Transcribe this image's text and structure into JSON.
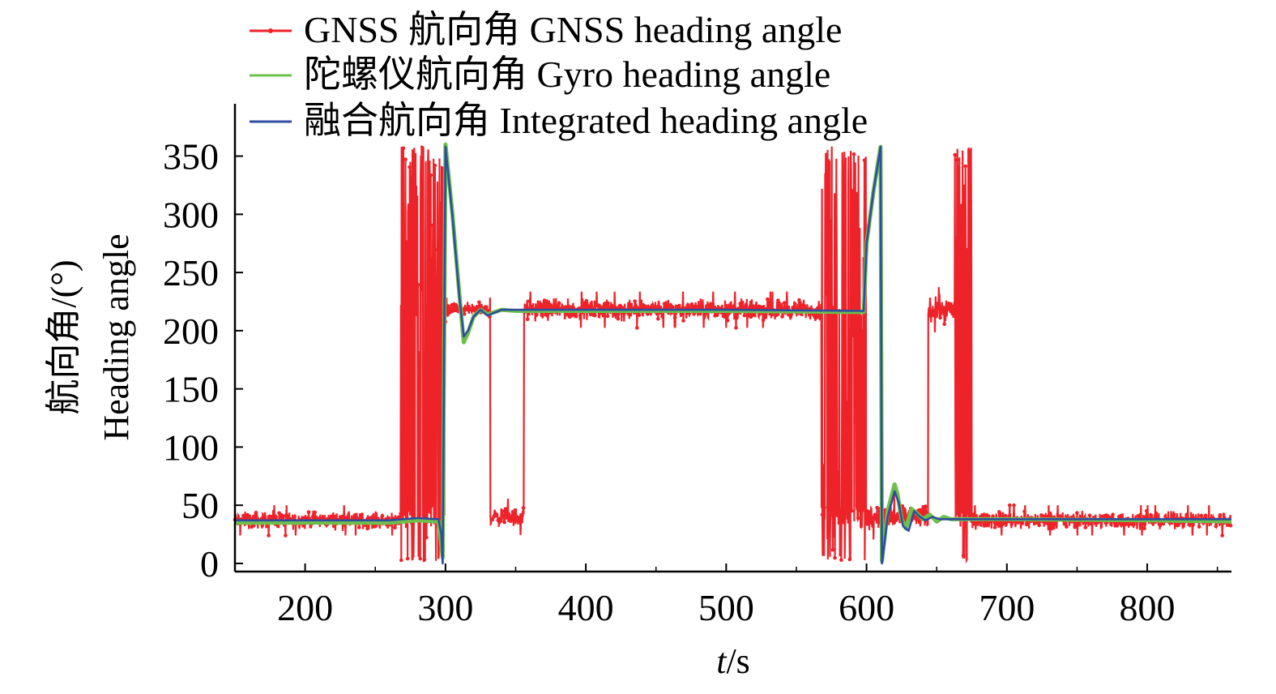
{
  "colors": {
    "gnss": "#ee2229",
    "gyro": "#6cc04a",
    "integrated": "#2e4da0",
    "axis": "#000000"
  },
  "chart_data": {
    "type": "line",
    "xlabel_italic": "t",
    "xlabel_unit": "/s",
    "ylabel_cn": "航向角/(°)",
    "ylabel_en": "Heading angle",
    "xlim": [
      150,
      860
    ],
    "ylim": [
      -7,
      395
    ],
    "x_ticks": [
      200,
      300,
      400,
      500,
      600,
      700,
      800
    ],
    "y_ticks": [
      0,
      50,
      100,
      150,
      200,
      250,
      300,
      350
    ],
    "legend_position": "top-left",
    "grid": false,
    "series": [
      {
        "name": "GNSS 航向角 GNSS heading angle",
        "color": "#ee2229",
        "marker": "dot",
        "noisy_segments": [
          {
            "x_start": 150,
            "x_end": 267,
            "center": 37,
            "spread": 10
          },
          {
            "x_start": 267,
            "x_end": 300,
            "center": 180,
            "spread": 180,
            "type": "switching"
          },
          {
            "x_start": 300,
            "x_end": 332,
            "center": 218,
            "spread": 8
          },
          {
            "x_start": 332,
            "x_end": 356,
            "center": 40,
            "spread": 12
          },
          {
            "x_start": 356,
            "x_end": 568,
            "center": 218,
            "spread": 12
          },
          {
            "x_start": 568,
            "x_end": 600,
            "center": 180,
            "spread": 180,
            "type": "switching"
          },
          {
            "x_start": 600,
            "x_end": 644,
            "center": 40,
            "spread": 15
          },
          {
            "x_start": 644,
            "x_end": 663,
            "center": 218,
            "spread": 15
          },
          {
            "x_start": 663,
            "x_end": 675,
            "center": 180,
            "spread": 180,
            "type": "switching"
          },
          {
            "x_start": 675,
            "x_end": 860,
            "center": 37,
            "spread": 10
          }
        ]
      },
      {
        "name": "陀螺仪航向角 Gyro heading angle",
        "color": "#6cc04a",
        "x": [
          150,
          200,
          260,
          280,
          295,
          298,
          300,
          305,
          310,
          313,
          316,
          320,
          325,
          330,
          340,
          350,
          400,
          500,
          598,
          600,
          605,
          610,
          611,
          615,
          620,
          622,
          625,
          628,
          632,
          636,
          640,
          645,
          650,
          655,
          660,
          670,
          700,
          800,
          860
        ],
        "y": [
          35,
          35,
          35,
          37,
          36,
          5,
          360,
          300,
          230,
          190,
          198,
          212,
          218,
          214,
          218,
          217,
          217,
          217,
          216,
          275,
          320,
          358,
          2,
          45,
          68,
          60,
          38,
          30,
          47,
          43,
          38,
          42,
          36,
          40,
          38,
          38,
          38,
          37,
          36
        ]
      },
      {
        "name": "融合航向角 Integrated heading angle",
        "color": "#2e4da0",
        "x": [
          150,
          200,
          260,
          280,
          295,
          297,
          298,
          300,
          305,
          310,
          313,
          316,
          320,
          325,
          330,
          340,
          350,
          400,
          500,
          598,
          600,
          605,
          610,
          611,
          615,
          620,
          623,
          626,
          630,
          634,
          638,
          642,
          647,
          652,
          660,
          670,
          700,
          800,
          860
        ],
        "y": [
          37,
          37,
          37,
          39,
          38,
          25,
          0,
          358,
          298,
          228,
          195,
          200,
          212,
          218,
          213,
          218,
          218,
          218,
          218,
          217,
          275,
          320,
          358,
          0,
          40,
          62,
          52,
          32,
          28,
          45,
          40,
          37,
          40,
          38,
          38,
          38,
          38,
          38,
          38
        ]
      }
    ]
  }
}
